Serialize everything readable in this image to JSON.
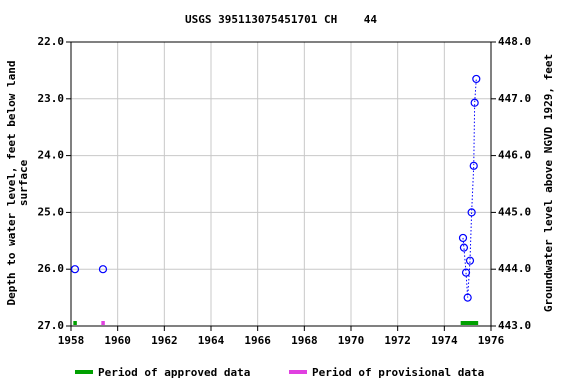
{
  "chart_data": {
    "type": "scatter",
    "title": "USGS 395113075451701 CH    44",
    "ylabel": [
      "Depth to water level, feet below land",
      "surface"
    ],
    "y2label": "Groundwater level above NGVD 1929, feet",
    "x": [
      1958.17,
      null,
      1959.37,
      null,
      1974.8,
      1974.84,
      1974.93,
      1975.0,
      1975.1,
      1975.17,
      1975.26,
      1975.3,
      1975.37
    ],
    "values": [
      26.0,
      null,
      26.0,
      null,
      25.45,
      25.62,
      26.06,
      26.5,
      25.85,
      25.0,
      24.18,
      23.07,
      22.65
    ],
    "color": "#0000ff",
    "xlim": [
      1958,
      1976
    ],
    "xticks": [
      1958,
      1960,
      1962,
      1964,
      1966,
      1968,
      1970,
      1972,
      1974,
      1976
    ],
    "ylim": [
      27.0,
      22.0
    ],
    "yticks": [
      {
        "value": 22,
        "label": "22.0"
      },
      {
        "value": 23,
        "label": "23.0"
      },
      {
        "value": 24,
        "label": "24.0"
      },
      {
        "value": 25,
        "label": "25.0"
      },
      {
        "value": 26,
        "label": "26.0"
      },
      {
        "value": 27,
        "label": "27.0"
      }
    ],
    "y2lim": [
      443.0,
      448.0
    ],
    "y2ticks": [
      {
        "value": 448,
        "label": "448.0"
      },
      {
        "value": 447,
        "label": "447.0"
      },
      {
        "value": 446,
        "label": "446.0"
      },
      {
        "value": 445,
        "label": "445.0"
      },
      {
        "value": 444,
        "label": "444.0"
      },
      {
        "value": 443,
        "label": "443.0"
      }
    ],
    "grid": true,
    "periods": [
      {
        "name": "Period of approved data",
        "color": "#00a000",
        "ranges": [
          [
            1958.1,
            1958.25
          ],
          [
            1974.7,
            1975.45
          ]
        ]
      },
      {
        "name": "Period of provisional data",
        "color": "#e040e0",
        "ranges": [
          [
            1959.3,
            1959.45
          ]
        ]
      }
    ]
  }
}
